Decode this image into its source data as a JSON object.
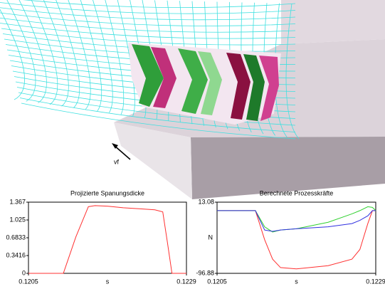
{
  "scene": {
    "label": "vf"
  },
  "chart_data": [
    {
      "type": "line",
      "title": "Projizierte Spanungsdicke",
      "xlabel": "s",
      "x": [
        0.1205,
        0.12103,
        0.12122,
        0.12141,
        0.12151,
        0.1217,
        0.12194,
        0.12218,
        0.12242,
        0.12254,
        0.12261,
        0.12268,
        0.1229
      ],
      "series": [
        {
          "color": "#ff3030",
          "values": [
            0,
            0,
            0.7,
            1.28,
            1.3,
            1.29,
            1.26,
            1.24,
            1.22,
            1.18,
            0.6,
            0,
            0
          ]
        }
      ],
      "xlim": [
        0.1205,
        0.1229
      ],
      "xticks": [
        0.1205,
        0.1229
      ],
      "ylim": [
        0,
        1.367
      ],
      "yticks": [
        0,
        0.3416,
        0.6833,
        1.025,
        1.367
      ]
    },
    {
      "type": "line",
      "title": "Berechnete Prozesskräfte",
      "xlabel": "s",
      "ylabel": "N",
      "x": [
        0.1205,
        0.12108,
        0.12122,
        0.12134,
        0.12146,
        0.1217,
        0.12218,
        0.12254,
        0.12266,
        0.12278,
        0.12285,
        0.1229
      ],
      "series": [
        {
          "color": "#ff3030",
          "values": [
            0,
            0,
            -45,
            -75,
            -88,
            -90,
            -85,
            -75,
            -60,
            -20,
            0,
            0
          ]
        },
        {
          "color": "#30d030",
          "values": [
            0,
            0,
            -25,
            -33,
            -30,
            -28,
            -18,
            -5,
            0,
            6,
            5,
            0
          ]
        },
        {
          "color": "#3030e0",
          "values": [
            0,
            0,
            -30,
            -32,
            -30,
            -28,
            -25,
            -20,
            -15,
            -8,
            0,
            0
          ]
        }
      ],
      "xlim": [
        0.1205,
        0.1229
      ],
      "xticks": [
        0.1205,
        0.1229
      ],
      "ylim": [
        -96.88,
        13.08
      ],
      "yticks": [
        -96.88,
        13.08
      ]
    }
  ]
}
